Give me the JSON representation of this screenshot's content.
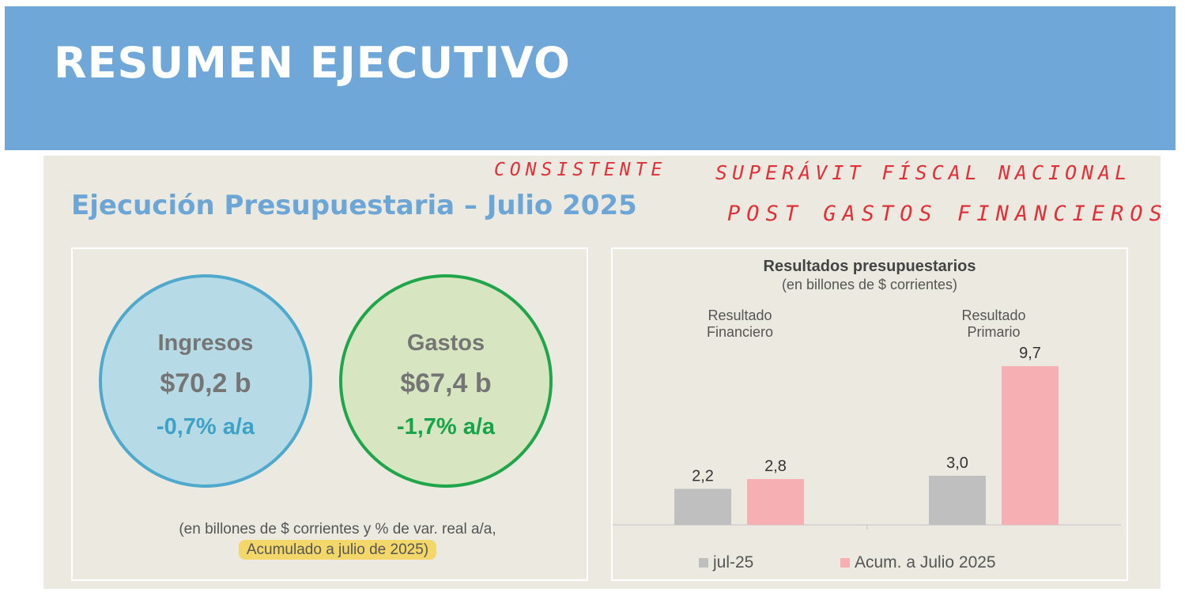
{
  "header": {
    "title": "RESUMEN EJECUTIVO"
  },
  "subtitle": "Ejecución Presupuestaria – Julio 2025",
  "handwriting": {
    "line1_a": "CONSISTENTE",
    "line1_b": "SUPERÁVIT FÍSCAL NACIONAL",
    "line2": "POST GASTOS FINANCIEROS"
  },
  "summary": {
    "ingresos": {
      "label": "Ingresos",
      "amount": "$70,2 b",
      "variation": "-0,7% a/a"
    },
    "gastos": {
      "label": "Gastos",
      "amount": "$67,4 b",
      "variation": "-1,7% a/a"
    },
    "note_line1": "(en billones de $ corrientes y % de var. real a/a,",
    "note_line2": "Acumulado a julio de 2025)"
  },
  "colors": {
    "ingresos_fill": "#b7dbe6",
    "ingresos_border": "#4fa9cc",
    "ingresos_var": "#3ea1c6",
    "gastos_fill": "#d7e6c0",
    "gastos_border": "#1fa64a",
    "gastos_var": "#16a34a",
    "jul25": "#bfbfbf",
    "acum": "#f6afb3"
  },
  "chart_data": {
    "type": "bar",
    "title": "Resultados presupuestarios",
    "subtitle": "(en billones de $ corrientes)",
    "categories": [
      "Resultado Financiero",
      "Resultado Primario"
    ],
    "category_lines": [
      [
        "Resultado",
        "Financiero"
      ],
      [
        "Resultado",
        "Primario"
      ]
    ],
    "series": [
      {
        "name": "jul-25",
        "values": [
          2.2,
          3.0
        ],
        "labels": [
          "2,2",
          "3,0"
        ]
      },
      {
        "name": "Acum. a Julio 2025",
        "values": [
          2.8,
          9.7
        ],
        "labels": [
          "2,8",
          "9,7"
        ]
      }
    ],
    "legend_position": "bottom",
    "grid": false
  }
}
